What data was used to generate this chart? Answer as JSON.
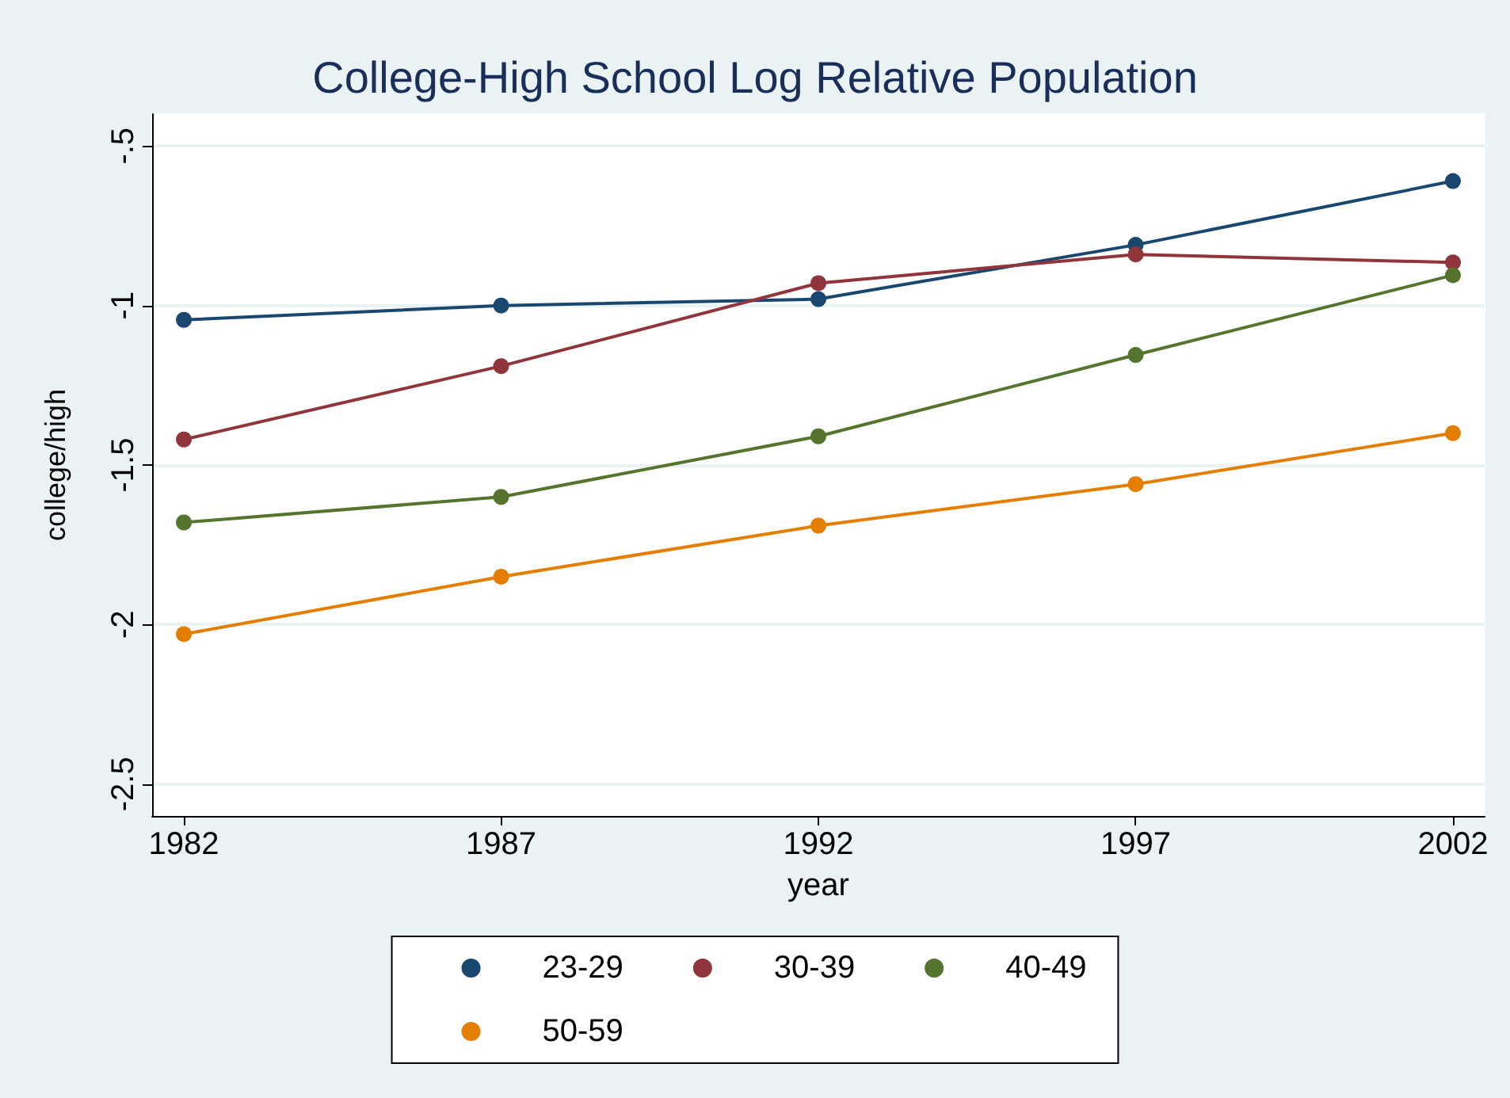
{
  "chart_data": {
    "type": "line",
    "title": "College-High School Log Relative Population",
    "xlabel": "year",
    "ylabel": "college/high",
    "x": [
      1982,
      1987,
      1992,
      1997,
      2002
    ],
    "series": [
      {
        "name": "23-29",
        "color": "#1a476f",
        "values": [
          -1.045,
          -1.0,
          -0.98,
          -0.81,
          -0.61
        ]
      },
      {
        "name": "30-39",
        "color": "#90353b",
        "values": [
          -1.42,
          -1.19,
          -0.93,
          -0.84,
          -0.865
        ]
      },
      {
        "name": "40-49",
        "color": "#55752f",
        "values": [
          -1.68,
          -1.6,
          -1.41,
          -1.155,
          -0.905
        ]
      },
      {
        "name": "50-59",
        "color": "#e37e00",
        "values": [
          -2.03,
          -1.85,
          -1.69,
          -1.56,
          -1.4
        ]
      }
    ],
    "xlim": [
      1981.5,
      2002.5
    ],
    "xticks": [
      1982,
      1987,
      1992,
      1997,
      2002
    ],
    "ylim": [
      -2.6,
      -0.4
    ],
    "yticks": [
      {
        "value": -2.5,
        "label": "-2.5"
      },
      {
        "value": -2,
        "label": "-2"
      },
      {
        "value": -1.5,
        "label": "-1.5"
      },
      {
        "value": -1,
        "label": "-1"
      },
      {
        "value": -0.5,
        "label": "-.5"
      }
    ],
    "grid": "y",
    "legend": "bottom",
    "marker": "circle",
    "line_style": "solid"
  }
}
